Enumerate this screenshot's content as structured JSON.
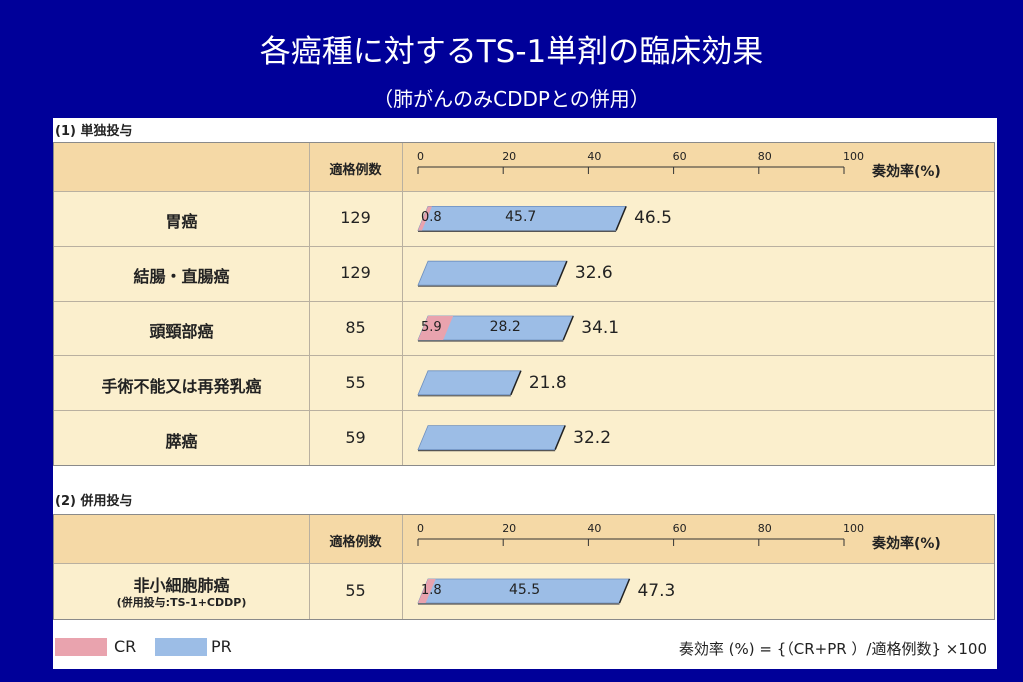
{
  "title": "各癌種に対するTS-1単剤の臨床効果",
  "subtitle": "（肺がんのみCDDPとの併用）",
  "section1_label": "(1) 単独投与",
  "section2_label": "(2) 併用投与",
  "header": {
    "n_label": "適格例数",
    "rate_label": "奏効率(%)"
  },
  "ticks": [
    "0",
    "20",
    "40",
    "60",
    "80",
    "100"
  ],
  "legend": {
    "cr": "CR",
    "pr": "PR"
  },
  "formula": "奏効率 (%) = {（CR+PR ）/適格例数} ×100",
  "colors": {
    "cr": "#e9a3ae",
    "pr": "#9cbde6",
    "header": "#f5d9a6",
    "row": "#fbefcd",
    "background": "#000099"
  },
  "chart_data": [
    {
      "type": "bar",
      "title": "(1) 単独投与",
      "xlabel": "奏効率(%)",
      "xlim": [
        0,
        100
      ],
      "categories": [
        "胃癌",
        "結腸・直腸癌",
        "頭頸部癌",
        "手術不能又は再発乳癌",
        "膵癌"
      ],
      "n": [
        "129",
        "129",
        "85",
        "55",
        "59"
      ],
      "series": [
        {
          "name": "CR",
          "values": [
            0.8,
            0,
            5.9,
            0,
            0
          ],
          "labels": [
            "0.8",
            "",
            "5.9",
            "",
            ""
          ]
        },
        {
          "name": "PR",
          "values": [
            45.7,
            32.6,
            28.2,
            21.8,
            32.2
          ],
          "labels": [
            "45.7",
            "",
            "28.2",
            "",
            ""
          ]
        }
      ],
      "totals": [
        "46.5",
        "32.6",
        "34.1",
        "21.8",
        "32.2"
      ]
    },
    {
      "type": "bar",
      "title": "(2) 併用投与",
      "xlabel": "奏効率(%)",
      "xlim": [
        0,
        100
      ],
      "categories": [
        "非小細胞肺癌"
      ],
      "category_notes": [
        "(併用投与:TS-1+CDDP)"
      ],
      "n": [
        "55"
      ],
      "series": [
        {
          "name": "CR",
          "values": [
            1.8
          ],
          "labels": [
            "1.8"
          ]
        },
        {
          "name": "PR",
          "values": [
            45.5
          ],
          "labels": [
            "45.5"
          ]
        }
      ],
      "totals": [
        "47.3"
      ]
    }
  ]
}
